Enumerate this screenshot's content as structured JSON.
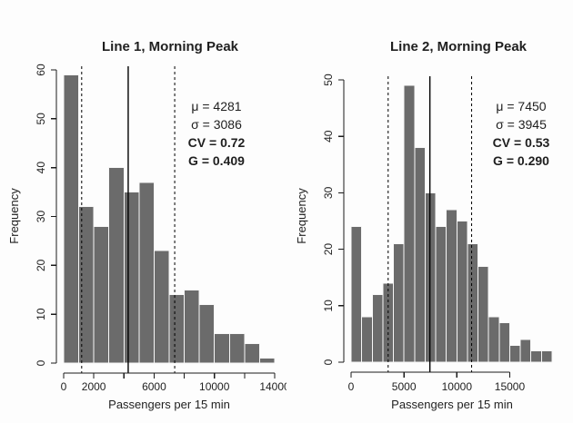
{
  "figure": {
    "background": "#fdfdfd",
    "bar_color": "#6b6b6b",
    "bar_border_color": "#f7f7f7",
    "axis_color": "#1a1a1a",
    "line_color": "#000000",
    "text_color": "#1f1f1f"
  },
  "chart_data": [
    {
      "type": "bar",
      "subtype": "histogram",
      "title": "Line 1, Morning Peak",
      "xlabel": "Passengers per 15 min",
      "ylabel": "Frequency",
      "bin_start": 0,
      "bin_width": 1000,
      "counts": [
        59,
        32,
        28,
        40,
        35,
        37,
        23,
        14,
        15,
        12,
        6,
        6,
        4,
        1
      ],
      "xlim": [
        0,
        14000
      ],
      "ylim": [
        0,
        60
      ],
      "x_ticks": [
        0,
        2000,
        4000,
        6000,
        8000,
        10000,
        12000,
        14000
      ],
      "x_tick_labels": [
        "0",
        "2000",
        "",
        "6000",
        "",
        "10000",
        "",
        "14000"
      ],
      "y_ticks": [
        0,
        10,
        20,
        30,
        40,
        50,
        60
      ],
      "x_axis_end": 14000,
      "grid": false,
      "legend": false,
      "mean": 4281,
      "sd": 3086,
      "mean_line_style": "solid",
      "sd_line_style": "dashed",
      "stats_lines": [
        {
          "text": "μ = 4281",
          "bold": false
        },
        {
          "text": "σ = 3086",
          "bold": false
        },
        {
          "text": "CV = 0.72",
          "bold": true
        },
        {
          "text": "G = 0.409",
          "bold": true
        }
      ]
    },
    {
      "type": "bar",
      "subtype": "histogram",
      "title": "Line 2, Morning Peak",
      "xlabel": "Passengers per 15 min",
      "ylabel": "Frequency",
      "bin_start": 0,
      "bin_width": 1000,
      "counts": [
        24,
        8,
        12,
        14,
        21,
        49,
        38,
        30,
        24,
        27,
        25,
        21,
        17,
        8,
        7,
        3,
        4,
        2,
        2
      ],
      "xlim": [
        0,
        19000
      ],
      "ylim": [
        0,
        50
      ],
      "x_ticks": [
        0,
        5000,
        10000,
        15000
      ],
      "x_tick_labels": [
        "0",
        "5000",
        "10000",
        "15000"
      ],
      "y_ticks": [
        0,
        10,
        20,
        30,
        40,
        50
      ],
      "x_axis_end": 15000,
      "grid": false,
      "legend": false,
      "mean": 7450,
      "sd": 3945,
      "mean_line_style": "solid",
      "sd_line_style": "dashed",
      "stats_lines": [
        {
          "text": "μ = 7450",
          "bold": false
        },
        {
          "text": "σ = 3945",
          "bold": false
        },
        {
          "text": "CV = 0.53",
          "bold": true
        },
        {
          "text": "G = 0.290",
          "bold": true
        }
      ]
    }
  ]
}
